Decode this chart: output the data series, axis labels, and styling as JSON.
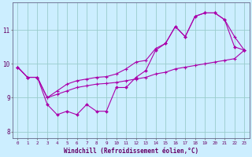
{
  "xlabel": "Windchill (Refroidissement éolien,°C)",
  "xlim": [
    -0.5,
    23.5
  ],
  "ylim": [
    7.8,
    11.8
  ],
  "xticks": [
    0,
    1,
    2,
    3,
    4,
    5,
    6,
    7,
    8,
    9,
    10,
    11,
    12,
    13,
    14,
    15,
    16,
    17,
    18,
    19,
    20,
    21,
    22,
    23
  ],
  "yticks": [
    8,
    9,
    10,
    11
  ],
  "bg_color": "#cceeff",
  "line_color": "#aa00aa",
  "grid_color": "#99cccc",
  "line1_x": [
    0,
    1,
    2,
    3,
    4,
    5,
    6,
    7,
    8,
    9,
    10,
    11,
    12,
    13,
    14,
    15,
    16,
    17,
    18,
    19,
    20,
    21,
    22,
    23
  ],
  "line1_y": [
    9.9,
    9.6,
    9.6,
    8.8,
    8.5,
    8.6,
    8.5,
    8.8,
    8.6,
    8.6,
    9.3,
    9.3,
    9.6,
    9.8,
    10.4,
    10.6,
    11.1,
    10.8,
    11.4,
    11.5,
    11.5,
    11.3,
    10.5,
    10.4
  ],
  "line2_x": [
    0,
    1,
    2,
    3,
    4,
    5,
    6,
    7,
    8,
    9,
    10,
    11,
    12,
    13,
    14,
    15,
    16,
    17,
    18,
    19,
    20,
    21,
    22,
    23
  ],
  "line2_y": [
    9.9,
    9.6,
    9.6,
    9.0,
    9.1,
    9.2,
    9.3,
    9.35,
    9.4,
    9.42,
    9.45,
    9.5,
    9.55,
    9.6,
    9.7,
    9.75,
    9.85,
    9.9,
    9.95,
    10.0,
    10.05,
    10.1,
    10.15,
    10.4
  ],
  "line3_x": [
    0,
    1,
    2,
    3,
    4,
    5,
    6,
    7,
    8,
    9,
    10,
    11,
    12,
    13,
    14,
    15,
    16,
    17,
    18,
    19,
    20,
    21,
    22,
    23
  ],
  "line3_y": [
    9.9,
    9.6,
    9.6,
    9.0,
    9.2,
    9.4,
    9.5,
    9.55,
    9.6,
    9.62,
    9.7,
    9.85,
    10.05,
    10.1,
    10.45,
    10.6,
    11.1,
    10.8,
    11.4,
    11.5,
    11.5,
    11.3,
    10.8,
    10.4
  ]
}
